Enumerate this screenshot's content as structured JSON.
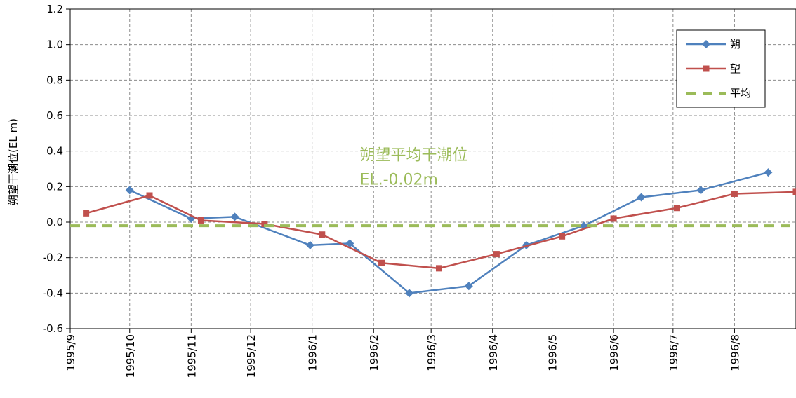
{
  "chart_data": {
    "type": "line",
    "ylabel": "朔望干潮位(EL m)",
    "ylim": [
      -0.6,
      1.2
    ],
    "ytick_step": 0.2,
    "x_categories": [
      "1995/9",
      "1995/10",
      "1995/11",
      "1995/12",
      "1996/1",
      "1996/2",
      "1996/3",
      "1996/4",
      "1996/5",
      "1996/6",
      "1996/7",
      "1996/8"
    ],
    "x_range": [
      "1995/9/1",
      "1996/9/1"
    ],
    "grid": true,
    "legend_position": "top-right",
    "series": [
      {
        "name": "朔",
        "color": "#4f81bd",
        "marker": "diamond",
        "points": [
          {
            "x": "1995/10/1",
            "y": 0.18
          },
          {
            "x": "1995/11/1",
            "y": 0.02
          },
          {
            "x": "1995/11/23",
            "y": 0.03
          },
          {
            "x": "1995/12/31",
            "y": -0.13
          },
          {
            "x": "1996/1/20",
            "y": -0.12
          },
          {
            "x": "1996/2/19",
            "y": -0.4
          },
          {
            "x": "1996/3/20",
            "y": -0.36
          },
          {
            "x": "1996/4/18",
            "y": -0.13
          },
          {
            "x": "1996/5/17",
            "y": -0.02
          },
          {
            "x": "1996/6/15",
            "y": 0.14
          },
          {
            "x": "1996/7/15",
            "y": 0.18
          },
          {
            "x": "1996/8/18",
            "y": 0.28
          }
        ]
      },
      {
        "name": "望",
        "color": "#c0504d",
        "marker": "square",
        "points": [
          {
            "x": "1995/9/9",
            "y": 0.05
          },
          {
            "x": "1995/10/11",
            "y": 0.15
          },
          {
            "x": "1995/11/6",
            "y": 0.01
          },
          {
            "x": "1995/12/8",
            "y": -0.01
          },
          {
            "x": "1996/1/6",
            "y": -0.07
          },
          {
            "x": "1996/2/5",
            "y": -0.23
          },
          {
            "x": "1996/3/5",
            "y": -0.26
          },
          {
            "x": "1996/4/3",
            "y": -0.18
          },
          {
            "x": "1996/5/6",
            "y": -0.08
          },
          {
            "x": "1996/6/1",
            "y": 0.02
          },
          {
            "x": "1996/7/3",
            "y": 0.08
          },
          {
            "x": "1996/8/1",
            "y": 0.16
          },
          {
            "x": "1996/9/1",
            "y": 0.17
          }
        ]
      },
      {
        "name": "平均",
        "color": "#9bbb59",
        "dashed": true,
        "value": -0.02
      }
    ],
    "annotation": {
      "line1": "朔望平均干潮位",
      "line2": "EL.-0.02m",
      "anchor": {
        "x": "1996/1/25",
        "y": 0.35
      }
    }
  }
}
